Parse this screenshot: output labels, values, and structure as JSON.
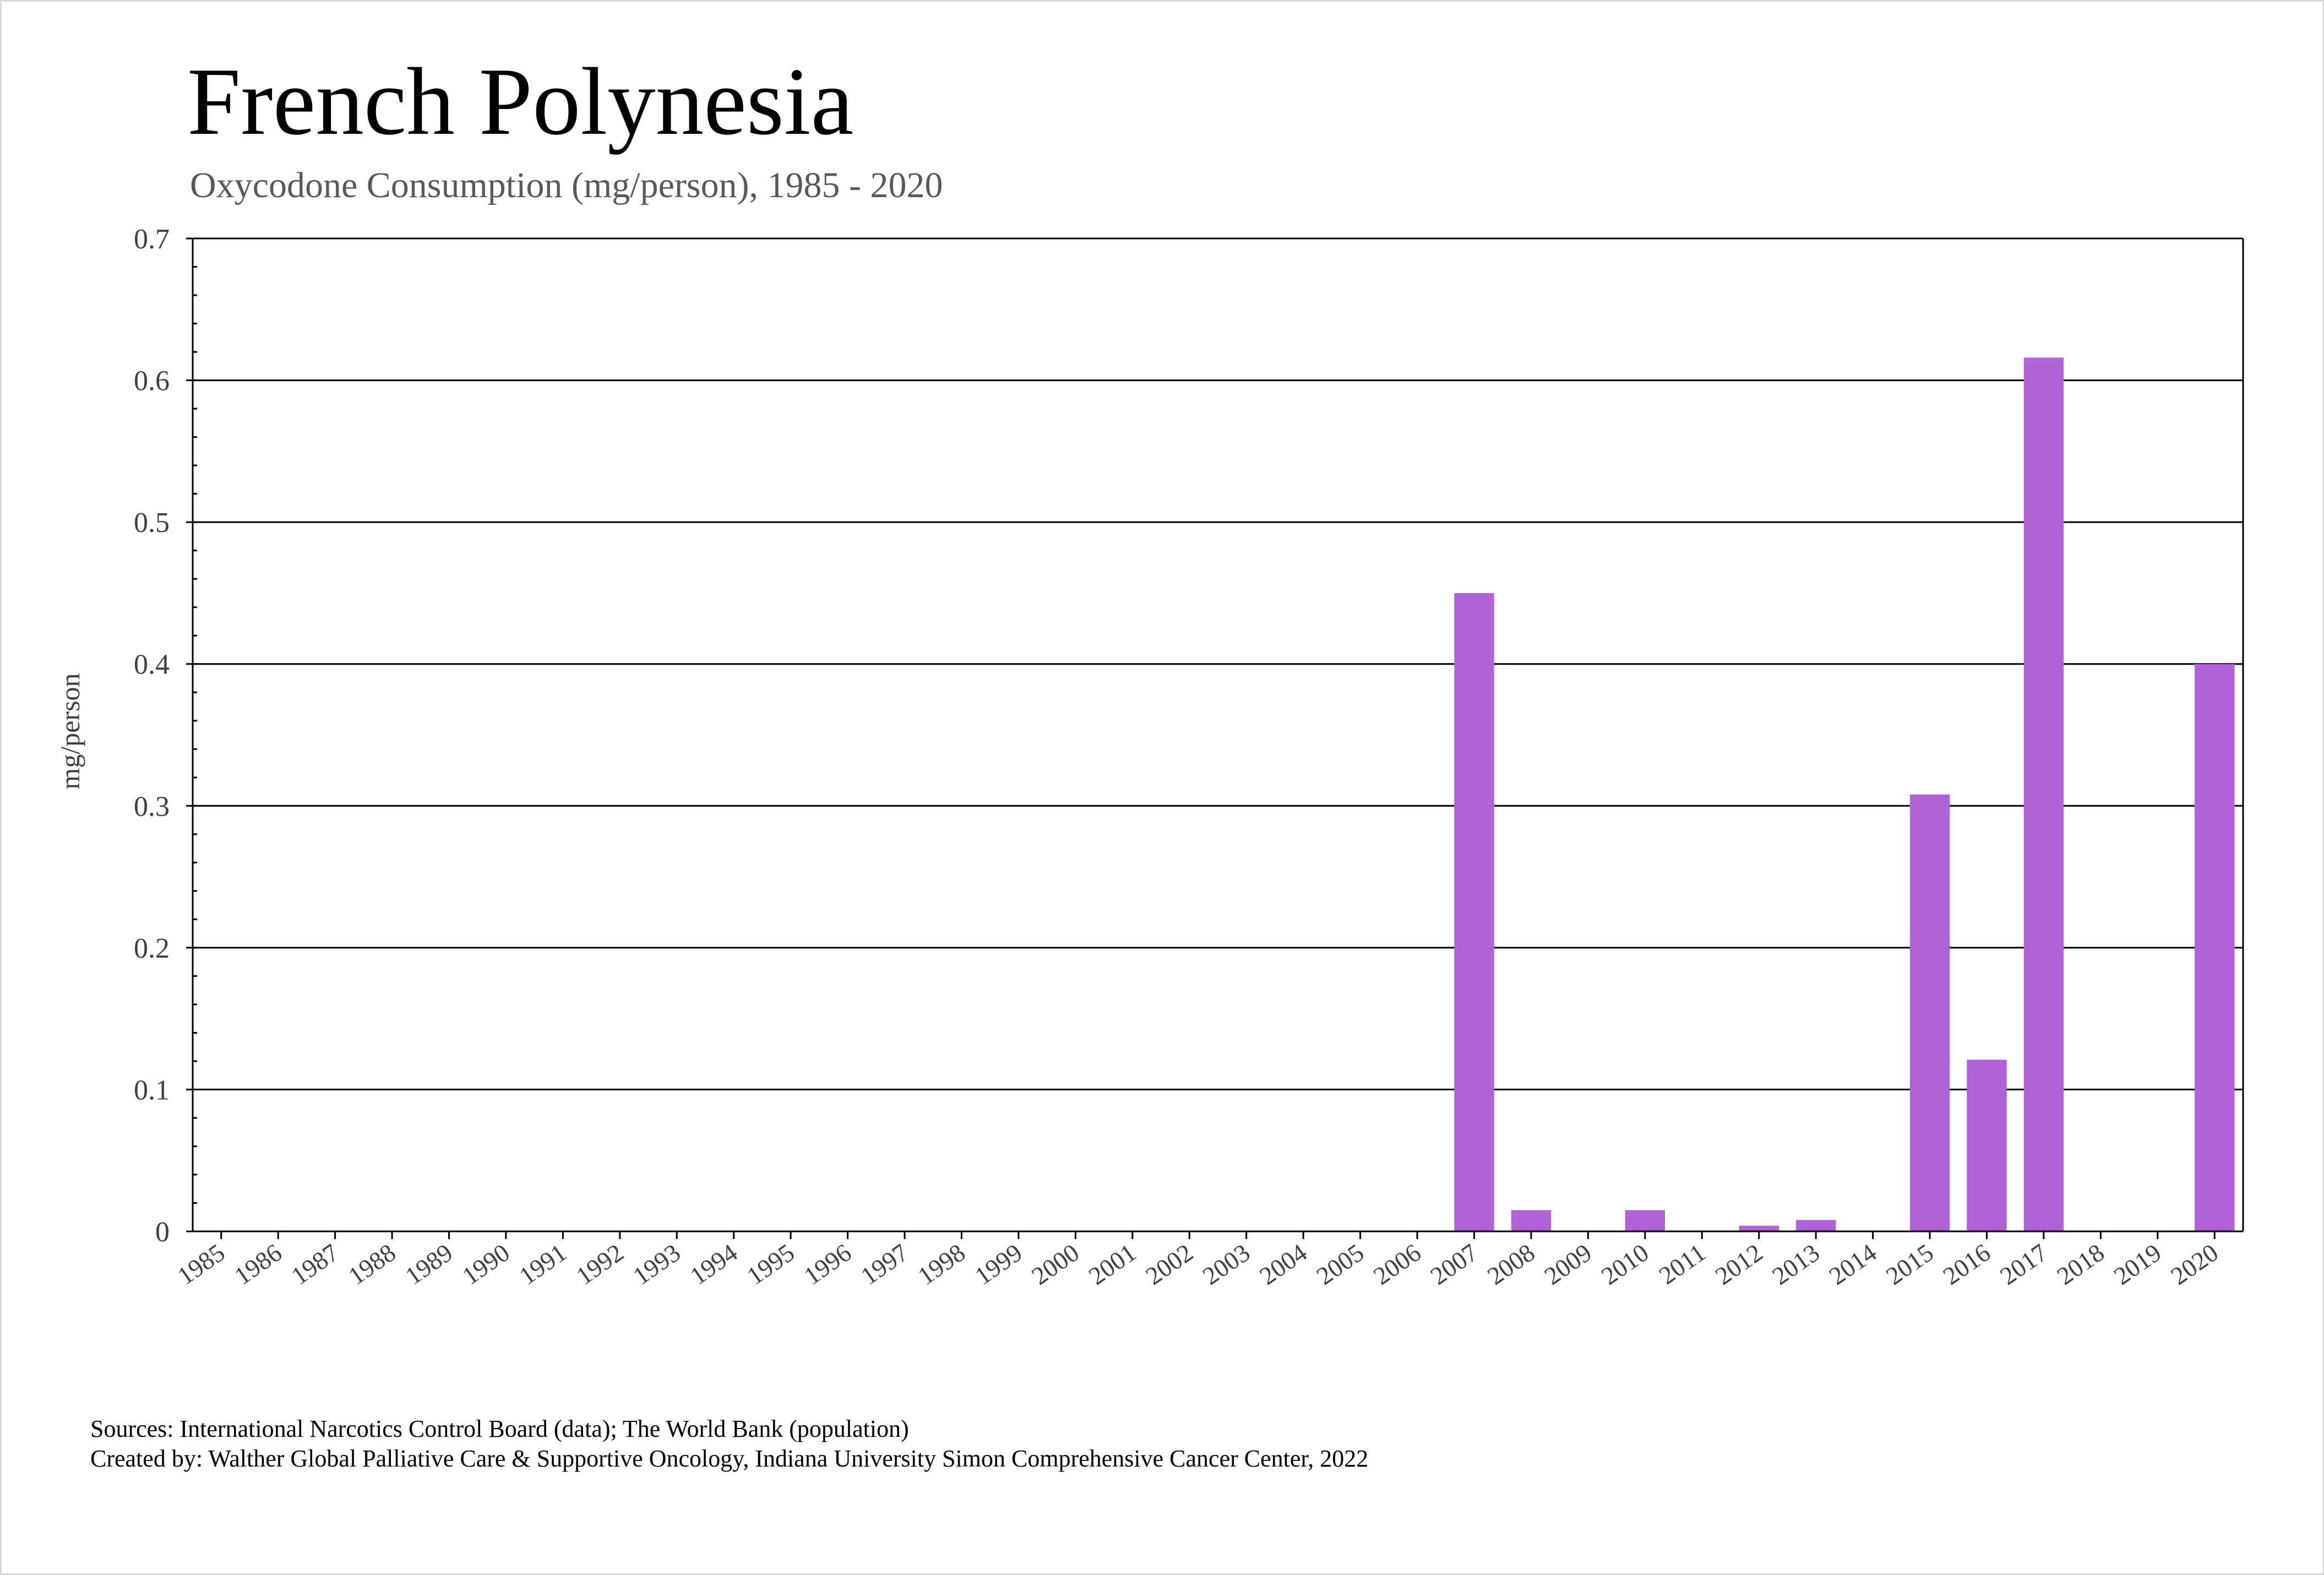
{
  "chart_data": {
    "type": "bar",
    "title": "French Polynesia",
    "subtitle": "Oxycodone Consumption (mg/person), 1985 - 2020",
    "xlabel": "",
    "ylabel": "mg/person",
    "ylim": [
      0,
      0.7
    ],
    "yticks": [
      "0",
      "0.1",
      "0.2",
      "0.3",
      "0.4",
      "0.5",
      "0.6",
      "0.7"
    ],
    "grid": true,
    "legend": "none",
    "categories": [
      "1985",
      "1986",
      "1987",
      "1988",
      "1989",
      "1990",
      "1991",
      "1992",
      "1993",
      "1994",
      "1995",
      "1996",
      "1997",
      "1998",
      "1999",
      "2000",
      "2001",
      "2002",
      "2003",
      "2004",
      "2005",
      "2006",
      "2007",
      "2008",
      "2009",
      "2010",
      "2011",
      "2012",
      "2013",
      "2014",
      "2015",
      "2016",
      "2017",
      "2018",
      "2019",
      "2020"
    ],
    "values": [
      0,
      0,
      0,
      0,
      0,
      0,
      0,
      0,
      0,
      0,
      0,
      0,
      0,
      0,
      0,
      0,
      0,
      0,
      0,
      0,
      0,
      0,
      0.45,
      0.015,
      0,
      0.015,
      0,
      0.004,
      0.008,
      0,
      0.308,
      0.121,
      0.616,
      0,
      0,
      0.4
    ],
    "colors": {
      "bar": "#b162d6",
      "grid": "#000000",
      "axis": "#000000"
    }
  },
  "footer": {
    "sources": "Sources: International Narcotics Control Board (data); The World Bank (population)",
    "created_by": "Created by: Walther Global Palliative Care & Supportive Oncology, Indiana University Simon Comprehensive Cancer Center, 2022"
  }
}
